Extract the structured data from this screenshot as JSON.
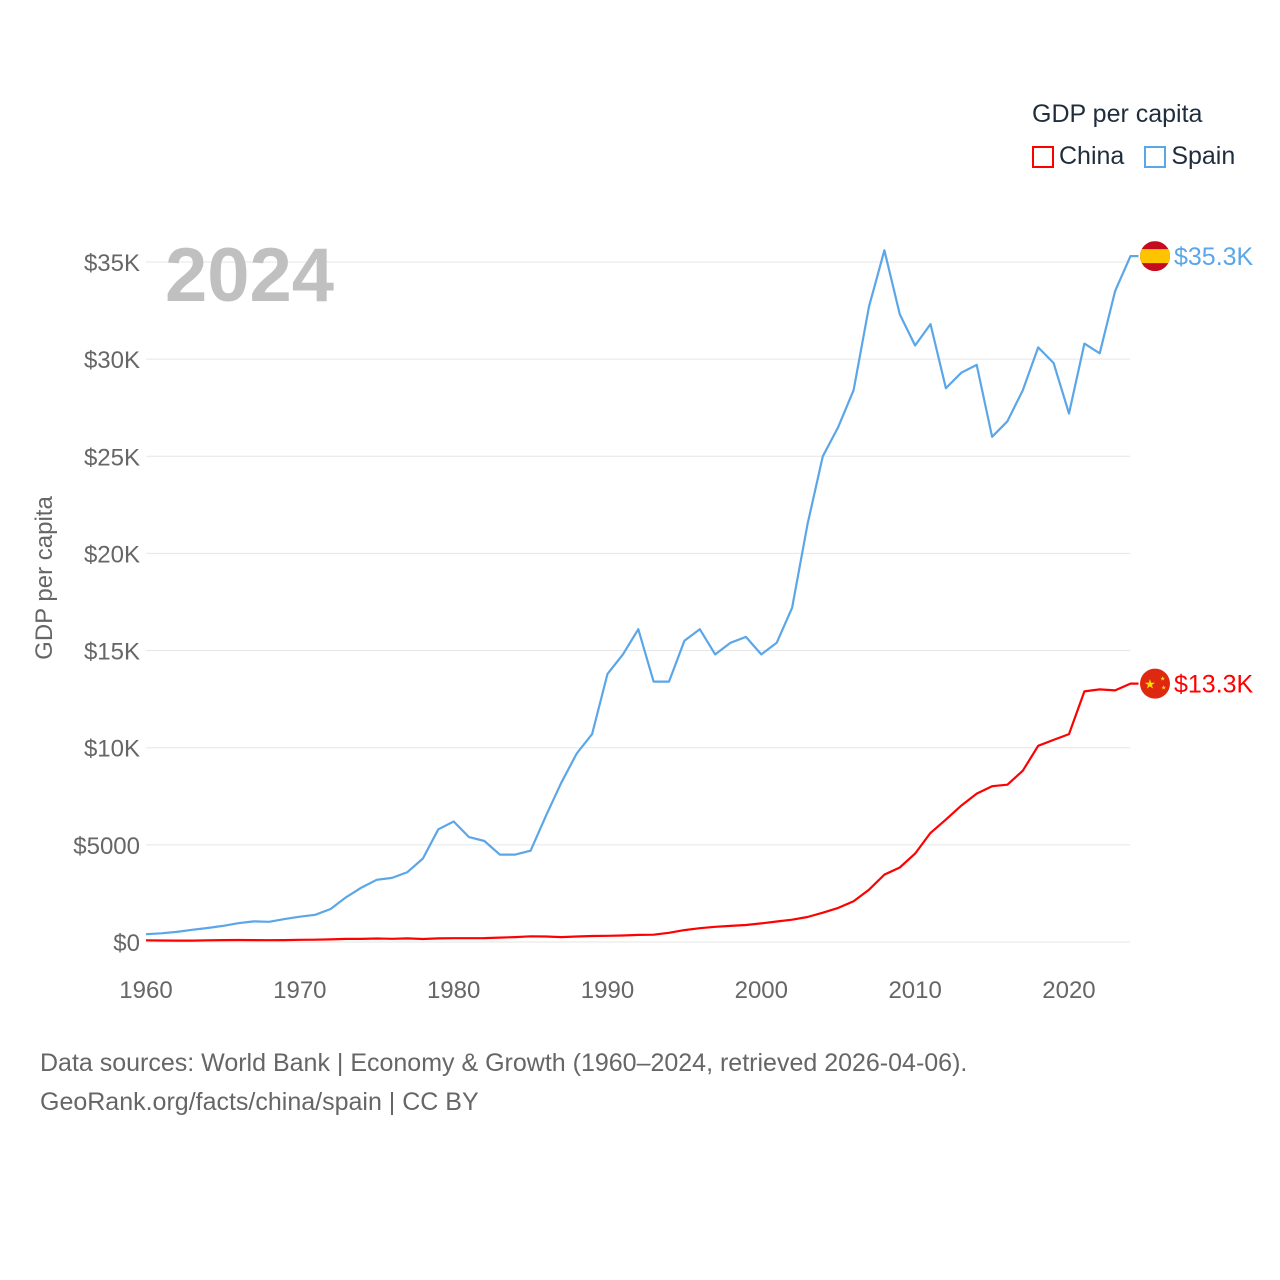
{
  "chart_data": {
    "type": "line",
    "title": "GDP per capita",
    "year_label": "2024",
    "ylabel": "GDP per capita",
    "xlabel": "",
    "xlim": [
      1960,
      2024
    ],
    "ylim": [
      0,
      37000
    ],
    "grid": true,
    "legend_placement": "top-right",
    "x_ticks": [
      1960,
      1970,
      1980,
      1990,
      2000,
      2010,
      2020
    ],
    "x_tick_labels": [
      "1960",
      "1970",
      "1980",
      "1990",
      "2000",
      "2010",
      "2020"
    ],
    "y_ticks": [
      0,
      5000,
      10000,
      15000,
      20000,
      25000,
      30000,
      35000
    ],
    "y_tick_labels": [
      "$0",
      "$5000",
      "$10K",
      "$15K",
      "$20K",
      "$25K",
      "$30K",
      "$35K"
    ],
    "x": [
      1960,
      1961,
      1962,
      1963,
      1964,
      1965,
      1966,
      1967,
      1968,
      1969,
      1970,
      1971,
      1972,
      1973,
      1974,
      1975,
      1976,
      1977,
      1978,
      1979,
      1980,
      1981,
      1982,
      1983,
      1984,
      1985,
      1986,
      1987,
      1988,
      1989,
      1990,
      1991,
      1992,
      1993,
      1994,
      1995,
      1996,
      1997,
      1998,
      1999,
      2000,
      2001,
      2002,
      2003,
      2004,
      2005,
      2006,
      2007,
      2008,
      2009,
      2010,
      2011,
      2012,
      2013,
      2014,
      2015,
      2016,
      2017,
      2018,
      2019,
      2020,
      2021,
      2022,
      2023,
      2024
    ],
    "series": [
      {
        "name": "China",
        "color": "#ff0000",
        "end_label": "$13.3K",
        "flag": "china-flag",
        "values": [
          90,
          75,
          70,
          74,
          85,
          98,
          104,
          96,
          91,
          100,
          113,
          119,
          132,
          157,
          160,
          178,
          165,
          185,
          156,
          183,
          195,
          197,
          203,
          225,
          250,
          294,
          281,
          252,
          284,
          311,
          318,
          333,
          366,
          377,
          473,
          610,
          709,
          782,
          829,
          873,
          959,
          1053,
          1149,
          1289,
          1509,
          1753,
          2099,
          2694,
          3468,
          3832,
          4550,
          5614,
          6300,
          7020,
          7636,
          8016,
          8094,
          8817,
          10100,
          10400,
          10700,
          12900,
          13000,
          12950,
          13300
        ]
      },
      {
        "name": "Spain",
        "color": "#5ba6e8",
        "end_label": "$35.3K",
        "flag": "spain-flag",
        "values": [
          400,
          450,
          520,
          630,
          720,
          830,
          970,
          1060,
          1040,
          1180,
          1300,
          1400,
          1700,
          2300,
          2800,
          3200,
          3300,
          3600,
          4300,
          5800,
          6200,
          5400,
          5200,
          4500,
          4500,
          4700,
          6500,
          8200,
          9700,
          10700,
          13800,
          14800,
          16100,
          13400,
          13400,
          15500,
          16100,
          14800,
          15400,
          15700,
          14800,
          15400,
          17200,
          21500,
          25000,
          26500,
          28400,
          32700,
          35600,
          32300,
          30700,
          31800,
          28500,
          29300,
          29700,
          26000,
          26800,
          28400,
          30600,
          29800,
          27200,
          30800,
          30300,
          33500,
          35300
        ]
      }
    ]
  },
  "footer": {
    "line1": "Data sources: World Bank | Economy & Growth (1960–2024, retrieved 2026-04-06).",
    "line2": "GeoRank.org/facts/china/spain | CC BY"
  }
}
